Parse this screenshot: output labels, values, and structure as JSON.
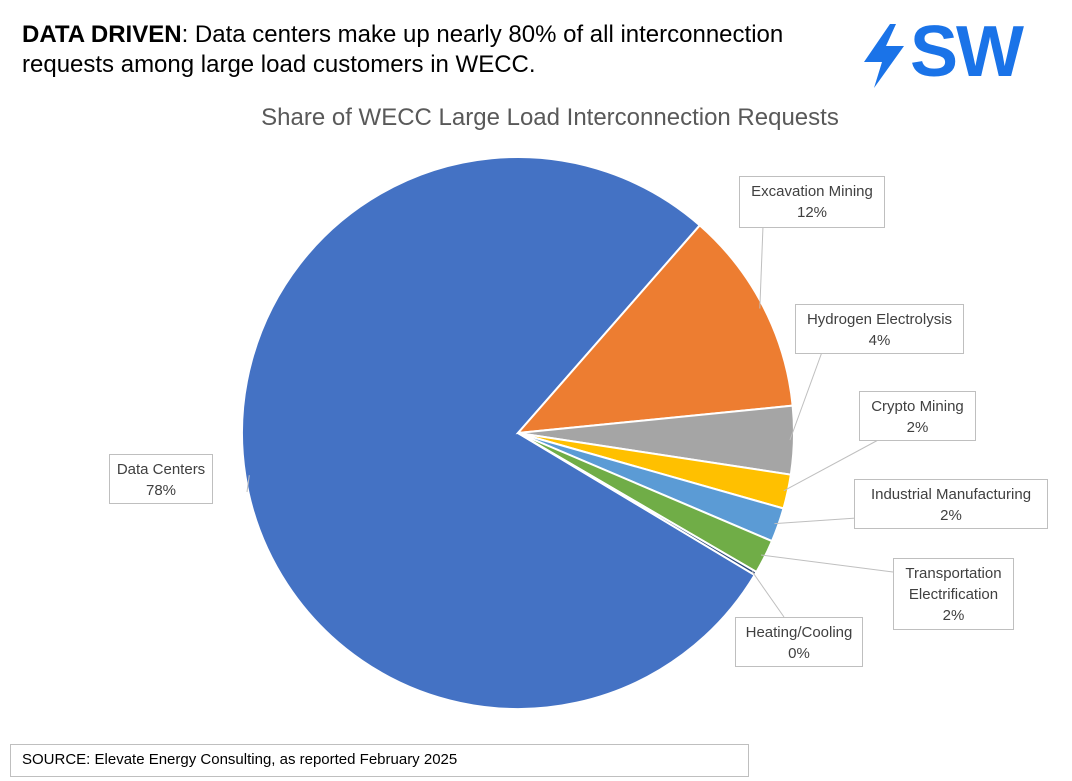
{
  "headline": {
    "bold": "DATA DRIVEN",
    "rest": ": Data centers make up nearly 80% of all interconnection requests among large load customers in WECC."
  },
  "logo": {
    "text": "SW",
    "color": "#1a73e8",
    "icon": "lightning-bolt-icon"
  },
  "source": "SOURCE: Elevate Energy Consulting, as reported February 2025",
  "chart_data": {
    "type": "pie",
    "title": "Share of WECC Large Load Interconnection Requests",
    "legend": "none",
    "slices": [
      {
        "label": "Data Centers",
        "value": 78,
        "display": "78%",
        "color": "#4472c4"
      },
      {
        "label": "Excavation Mining",
        "value": 12,
        "display": "12%",
        "color": "#ed7d31"
      },
      {
        "label": "Hydrogen Electrolysis",
        "value": 4,
        "display": "4%",
        "color": "#a5a5a5"
      },
      {
        "label": "Crypto Mining",
        "value": 2,
        "display": "2%",
        "color": "#ffc000"
      },
      {
        "label": "Industrial Manufacturing",
        "value": 2,
        "display": "2%",
        "color": "#5b9bd5"
      },
      {
        "label": "Transportation Electrification",
        "value": 2,
        "display": "2%",
        "color": "#70ad47"
      },
      {
        "label": "Heating/Cooling",
        "value": 0.2,
        "display": "0%",
        "color": "#264478"
      }
    ]
  }
}
